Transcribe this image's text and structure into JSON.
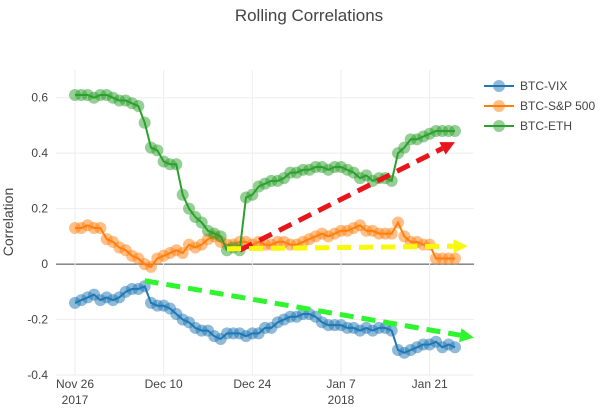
{
  "colors": {
    "vix": "#1f77b4",
    "sp500": "#ff7f0e",
    "eth": "#2ca02c",
    "arrow_red": "#e8161b",
    "arrow_yellow": "#f8f80d",
    "arrow_green": "#2ef52e",
    "zero_line": "#444444",
    "grid": "#eeeeee",
    "text": "#444444"
  },
  "chart_data": {
    "type": "line",
    "title": "Rolling Correlations",
    "xlabel": "",
    "ylabel": "Correlation",
    "grid": true,
    "legend_position": "top-right",
    "x_range": [
      "2017-11-23",
      "2018-01-28"
    ],
    "ylim": [
      -0.4,
      0.7
    ],
    "y_ticks": [
      -0.4,
      -0.2,
      0,
      0.2,
      0.4,
      0.6
    ],
    "x_ticks": [
      {
        "date": "2017-11-26",
        "label": "Nov 26",
        "sublabel": "2017"
      },
      {
        "date": "2017-12-10",
        "label": "Dec 10",
        "sublabel": ""
      },
      {
        "date": "2017-12-24",
        "label": "Dec 24",
        "sublabel": ""
      },
      {
        "date": "2018-01-07",
        "label": "Jan 7",
        "sublabel": "2018"
      },
      {
        "date": "2018-01-21",
        "label": "Jan 21",
        "sublabel": ""
      }
    ],
    "series": [
      {
        "name": "BTC-VIX",
        "color_key": "vix",
        "points": [
          [
            "2017-11-26",
            -0.14
          ],
          [
            "2017-11-27",
            -0.13
          ],
          [
            "2017-11-28",
            -0.12
          ],
          [
            "2017-11-29",
            -0.11
          ],
          [
            "2017-11-30",
            -0.13
          ],
          [
            "2017-12-01",
            -0.12
          ],
          [
            "2017-12-02",
            -0.13
          ],
          [
            "2017-12-03",
            -0.12
          ],
          [
            "2017-12-04",
            -0.1
          ],
          [
            "2017-12-05",
            -0.09
          ],
          [
            "2017-12-06",
            -0.09
          ],
          [
            "2017-12-07",
            -0.08
          ],
          [
            "2017-12-08",
            -0.14
          ],
          [
            "2017-12-09",
            -0.15
          ],
          [
            "2017-12-10",
            -0.15
          ],
          [
            "2017-12-11",
            -0.16
          ],
          [
            "2017-12-12",
            -0.18
          ],
          [
            "2017-12-13",
            -0.2
          ],
          [
            "2017-12-14",
            -0.21
          ],
          [
            "2017-12-15",
            -0.23
          ],
          [
            "2017-12-16",
            -0.24
          ],
          [
            "2017-12-17",
            -0.24
          ],
          [
            "2017-12-18",
            -0.26
          ],
          [
            "2017-12-19",
            -0.27
          ],
          [
            "2017-12-20",
            -0.25
          ],
          [
            "2017-12-21",
            -0.25
          ],
          [
            "2017-12-22",
            -0.25
          ],
          [
            "2017-12-23",
            -0.26
          ],
          [
            "2017-12-24",
            -0.25
          ],
          [
            "2017-12-25",
            -0.25
          ],
          [
            "2017-12-26",
            -0.23
          ],
          [
            "2017-12-27",
            -0.23
          ],
          [
            "2017-12-28",
            -0.21
          ],
          [
            "2017-12-29",
            -0.2
          ],
          [
            "2017-12-30",
            -0.19
          ],
          [
            "2017-12-31",
            -0.19
          ],
          [
            "2018-01-01",
            -0.18
          ],
          [
            "2018-01-02",
            -0.18
          ],
          [
            "2018-01-03",
            -0.19
          ],
          [
            "2018-01-04",
            -0.21
          ],
          [
            "2018-01-05",
            -0.22
          ],
          [
            "2018-01-06",
            -0.22
          ],
          [
            "2018-01-07",
            -0.22
          ],
          [
            "2018-01-08",
            -0.23
          ],
          [
            "2018-01-09",
            -0.23
          ],
          [
            "2018-01-10",
            -0.24
          ],
          [
            "2018-01-11",
            -0.23
          ],
          [
            "2018-01-12",
            -0.24
          ],
          [
            "2018-01-13",
            -0.23
          ],
          [
            "2018-01-14",
            -0.23
          ],
          [
            "2018-01-15",
            -0.24
          ],
          [
            "2018-01-16",
            -0.31
          ],
          [
            "2018-01-17",
            -0.32
          ],
          [
            "2018-01-18",
            -0.31
          ],
          [
            "2018-01-19",
            -0.3
          ],
          [
            "2018-01-20",
            -0.29
          ],
          [
            "2018-01-21",
            -0.29
          ],
          [
            "2018-01-22",
            -0.28
          ],
          [
            "2018-01-23",
            -0.3
          ],
          [
            "2018-01-24",
            -0.29
          ],
          [
            "2018-01-25",
            -0.3
          ]
        ]
      },
      {
        "name": "BTC-S&P 500",
        "color_key": "sp500",
        "points": [
          [
            "2017-11-26",
            0.13
          ],
          [
            "2017-11-27",
            0.13
          ],
          [
            "2017-11-28",
            0.14
          ],
          [
            "2017-11-29",
            0.13
          ],
          [
            "2017-11-30",
            0.13
          ],
          [
            "2017-12-01",
            0.09
          ],
          [
            "2017-12-02",
            0.08
          ],
          [
            "2017-12-03",
            0.06
          ],
          [
            "2017-12-04",
            0.05
          ],
          [
            "2017-12-05",
            0.03
          ],
          [
            "2017-12-06",
            0.02
          ],
          [
            "2017-12-07",
            0.0
          ],
          [
            "2017-12-08",
            -0.01
          ],
          [
            "2017-12-09",
            0.02
          ],
          [
            "2017-12-10",
            0.03
          ],
          [
            "2017-12-11",
            0.04
          ],
          [
            "2017-12-12",
            0.05
          ],
          [
            "2017-12-13",
            0.04
          ],
          [
            "2017-12-14",
            0.07
          ],
          [
            "2017-12-15",
            0.06
          ],
          [
            "2017-12-16",
            0.07
          ],
          [
            "2017-12-17",
            0.09
          ],
          [
            "2017-12-18",
            0.1
          ],
          [
            "2017-12-19",
            0.08
          ],
          [
            "2017-12-20",
            0.07
          ],
          [
            "2017-12-21",
            0.07
          ],
          [
            "2017-12-22",
            0.08
          ],
          [
            "2017-12-23",
            0.08
          ],
          [
            "2017-12-24",
            0.07
          ],
          [
            "2017-12-25",
            0.08
          ],
          [
            "2017-12-26",
            0.07
          ],
          [
            "2017-12-27",
            0.07
          ],
          [
            "2017-12-28",
            0.08
          ],
          [
            "2017-12-29",
            0.08
          ],
          [
            "2017-12-30",
            0.07
          ],
          [
            "2017-12-31",
            0.07
          ],
          [
            "2018-01-01",
            0.08
          ],
          [
            "2018-01-02",
            0.09
          ],
          [
            "2018-01-03",
            0.1
          ],
          [
            "2018-01-04",
            0.11
          ],
          [
            "2018-01-05",
            0.1
          ],
          [
            "2018-01-06",
            0.11
          ],
          [
            "2018-01-07",
            0.12
          ],
          [
            "2018-01-08",
            0.12
          ],
          [
            "2018-01-09",
            0.13
          ],
          [
            "2018-01-10",
            0.14
          ],
          [
            "2018-01-11",
            0.12
          ],
          [
            "2018-01-12",
            0.12
          ],
          [
            "2018-01-13",
            0.11
          ],
          [
            "2018-01-14",
            0.11
          ],
          [
            "2018-01-15",
            0.11
          ],
          [
            "2018-01-16",
            0.15
          ],
          [
            "2018-01-17",
            0.1
          ],
          [
            "2018-01-18",
            0.08
          ],
          [
            "2018-01-19",
            0.08
          ],
          [
            "2018-01-20",
            0.07
          ],
          [
            "2018-01-21",
            0.07
          ],
          [
            "2018-01-22",
            0.02
          ],
          [
            "2018-01-23",
            0.02
          ],
          [
            "2018-01-24",
            0.02
          ],
          [
            "2018-01-25",
            0.02
          ]
        ]
      },
      {
        "name": "BTC-ETH",
        "color_key": "eth",
        "points": [
          [
            "2017-11-26",
            0.61
          ],
          [
            "2017-11-27",
            0.61
          ],
          [
            "2017-11-28",
            0.61
          ],
          [
            "2017-11-29",
            0.6
          ],
          [
            "2017-11-30",
            0.61
          ],
          [
            "2017-12-01",
            0.61
          ],
          [
            "2017-12-02",
            0.6
          ],
          [
            "2017-12-03",
            0.59
          ],
          [
            "2017-12-04",
            0.59
          ],
          [
            "2017-12-05",
            0.58
          ],
          [
            "2017-12-06",
            0.57
          ],
          [
            "2017-12-07",
            0.51
          ],
          [
            "2017-12-08",
            0.42
          ],
          [
            "2017-12-09",
            0.41
          ],
          [
            "2017-12-10",
            0.37
          ],
          [
            "2017-12-11",
            0.36
          ],
          [
            "2017-12-12",
            0.36
          ],
          [
            "2017-12-13",
            0.25
          ],
          [
            "2017-12-14",
            0.2
          ],
          [
            "2017-12-15",
            0.17
          ],
          [
            "2017-12-16",
            0.15
          ],
          [
            "2017-12-17",
            0.12
          ],
          [
            "2017-12-18",
            0.11
          ],
          [
            "2017-12-19",
            0.1
          ],
          [
            "2017-12-20",
            0.05
          ],
          [
            "2017-12-21",
            0.06
          ],
          [
            "2017-12-22",
            0.05
          ],
          [
            "2017-12-23",
            0.24
          ],
          [
            "2017-12-24",
            0.25
          ],
          [
            "2017-12-25",
            0.28
          ],
          [
            "2017-12-26",
            0.29
          ],
          [
            "2017-12-27",
            0.3
          ],
          [
            "2017-12-28",
            0.3
          ],
          [
            "2017-12-29",
            0.31
          ],
          [
            "2017-12-30",
            0.33
          ],
          [
            "2017-12-31",
            0.33
          ],
          [
            "2018-01-01",
            0.34
          ],
          [
            "2018-01-02",
            0.34
          ],
          [
            "2018-01-03",
            0.35
          ],
          [
            "2018-01-04",
            0.35
          ],
          [
            "2018-01-05",
            0.34
          ],
          [
            "2018-01-06",
            0.35
          ],
          [
            "2018-01-07",
            0.35
          ],
          [
            "2018-01-08",
            0.34
          ],
          [
            "2018-01-09",
            0.33
          ],
          [
            "2018-01-10",
            0.31
          ],
          [
            "2018-01-11",
            0.32
          ],
          [
            "2018-01-12",
            0.3
          ],
          [
            "2018-01-13",
            0.31
          ],
          [
            "2018-01-14",
            0.31
          ],
          [
            "2018-01-15",
            0.3
          ],
          [
            "2018-01-16",
            0.4
          ],
          [
            "2018-01-17",
            0.42
          ],
          [
            "2018-01-18",
            0.45
          ],
          [
            "2018-01-19",
            0.45
          ],
          [
            "2018-01-20",
            0.46
          ],
          [
            "2018-01-21",
            0.47
          ],
          [
            "2018-01-22",
            0.48
          ],
          [
            "2018-01-23",
            0.48
          ],
          [
            "2018-01-24",
            0.48
          ],
          [
            "2018-01-25",
            0.48
          ]
        ]
      }
    ],
    "annotations": [
      {
        "type": "arrow",
        "style": "dashed",
        "color_key": "arrow_red",
        "from": [
          "2017-12-22",
          0.05
        ],
        "to": [
          "2018-01-25",
          0.44
        ]
      },
      {
        "type": "arrow",
        "style": "dashed",
        "color_key": "arrow_yellow",
        "from": [
          "2017-12-20",
          0.055
        ],
        "to": [
          "2018-01-27",
          0.065
        ]
      },
      {
        "type": "arrow",
        "style": "dashed",
        "color_key": "arrow_green",
        "from": [
          "2017-12-07",
          -0.06
        ],
        "to": [
          "2018-01-28",
          -0.265
        ]
      }
    ]
  }
}
